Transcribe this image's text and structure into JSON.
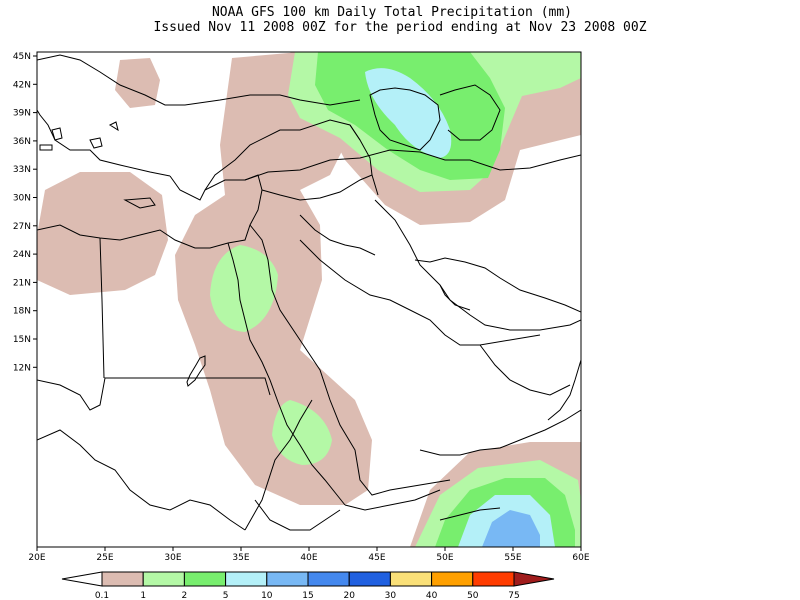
{
  "header": {
    "title_line1": "NOAA GFS 100 km Daily Total Precipitation (mm)",
    "title_line2": "Issued Nov 11 2008 00Z for the period ending at Nov 23 2008 00Z"
  },
  "map": {
    "lat_labels": [
      "45N",
      "42N",
      "39N",
      "36N",
      "33N",
      "30N",
      "27N",
      "24N",
      "21N",
      "18N",
      "15N",
      "12N"
    ],
    "lon_labels": [
      "20E",
      "25E",
      "30E",
      "35E",
      "40E",
      "45E",
      "50E",
      "55E",
      "60E"
    ],
    "lon_min": 20,
    "lon_max": 60,
    "lat_min": 10,
    "lat_max": 45
  },
  "legend": {
    "labels": [
      "0.1",
      "1",
      "2",
      "5",
      "10",
      "15",
      "20",
      "30",
      "40",
      "50",
      "75"
    ],
    "colors": [
      "#ffffff",
      "#dcbcb2",
      "#b4f8a6",
      "#78ee6e",
      "#b4f0f8",
      "#78b8f4",
      "#4488ee",
      "#2060e0",
      "#fae078",
      "#ffa000",
      "#ff3c00",
      "#a01c1c"
    ]
  }
}
